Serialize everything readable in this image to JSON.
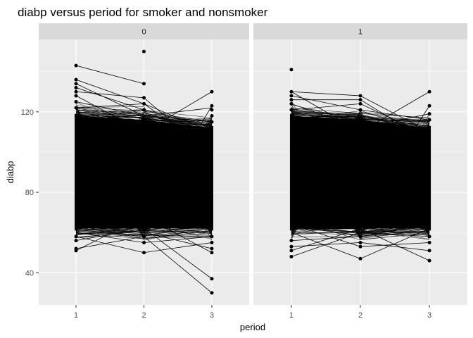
{
  "chart_data": {
    "type": "line",
    "title": "diabp versus period for smoker and nonsmoker",
    "xlabel": "period",
    "ylabel": "diabp",
    "x_ticks": [
      1,
      2,
      3
    ],
    "y_ticks": [
      40,
      80,
      120
    ],
    "xlim": [
      0.45,
      3.55
    ],
    "ylim": [
      24,
      156
    ],
    "grid": true,
    "colors": {
      "panel_background": "#ebebeb",
      "strip_background": "#d9d9d9",
      "gridline": "#ffffff",
      "series": "#000000"
    },
    "density_band": {
      "note": "dense overlapping per-subject lines",
      "period_1_range": [
        62,
        118
      ],
      "period_2_range": [
        62,
        116
      ],
      "period_3_range": [
        62,
        112
      ]
    },
    "facets": [
      {
        "label": "0",
        "outlier_points": [
          {
            "x": 1,
            "y": 143
          },
          {
            "x": 1,
            "y": 136
          },
          {
            "x": 1,
            "y": 134
          },
          {
            "x": 1,
            "y": 132
          },
          {
            "x": 1,
            "y": 130
          },
          {
            "x": 1,
            "y": 128
          },
          {
            "x": 1,
            "y": 125
          },
          {
            "x": 1,
            "y": 122
          },
          {
            "x": 1,
            "y": 58
          },
          {
            "x": 1,
            "y": 56
          },
          {
            "x": 1,
            "y": 52
          },
          {
            "x": 1,
            "y": 51
          },
          {
            "x": 2,
            "y": 150
          },
          {
            "x": 2,
            "y": 134
          },
          {
            "x": 2,
            "y": 127
          },
          {
            "x": 2,
            "y": 124
          },
          {
            "x": 2,
            "y": 121
          },
          {
            "x": 2,
            "y": 58
          },
          {
            "x": 2,
            "y": 55
          },
          {
            "x": 2,
            "y": 50
          },
          {
            "x": 3,
            "y": 130
          },
          {
            "x": 3,
            "y": 123
          },
          {
            "x": 3,
            "y": 121
          },
          {
            "x": 3,
            "y": 118
          },
          {
            "x": 3,
            "y": 115
          },
          {
            "x": 3,
            "y": 58
          },
          {
            "x": 3,
            "y": 55
          },
          {
            "x": 3,
            "y": 52
          },
          {
            "x": 3,
            "y": 50
          },
          {
            "x": 3,
            "y": 37
          },
          {
            "x": 3,
            "y": 30
          }
        ],
        "outlier_lines": [
          [
            143,
            134,
            null
          ],
          [
            136,
            124,
            110
          ],
          [
            134,
            118,
            122
          ],
          [
            132,
            121,
            112
          ],
          [
            130,
            127,
            98
          ],
          [
            128,
            110,
            130
          ],
          [
            125,
            118,
            115
          ],
          [
            122,
            124,
            100
          ],
          [
            null,
            150,
            null
          ],
          [
            58,
            50,
            55
          ],
          [
            56,
            62,
            37
          ],
          [
            52,
            58,
            30
          ],
          [
            51,
            68,
            50
          ],
          [
            60,
            55,
            58
          ],
          [
            62,
            60,
            52
          ],
          [
            70,
            66,
            123
          ]
        ]
      },
      {
        "label": "1",
        "outlier_points": [
          {
            "x": 1,
            "y": 141
          },
          {
            "x": 1,
            "y": 130
          },
          {
            "x": 1,
            "y": 128
          },
          {
            "x": 1,
            "y": 126
          },
          {
            "x": 1,
            "y": 124
          },
          {
            "x": 1,
            "y": 121
          },
          {
            "x": 1,
            "y": 56
          },
          {
            "x": 1,
            "y": 53
          },
          {
            "x": 1,
            "y": 51
          },
          {
            "x": 1,
            "y": 48
          },
          {
            "x": 2,
            "y": 128
          },
          {
            "x": 2,
            "y": 126
          },
          {
            "x": 2,
            "y": 124
          },
          {
            "x": 2,
            "y": 121
          },
          {
            "x": 2,
            "y": 58
          },
          {
            "x": 2,
            "y": 55
          },
          {
            "x": 2,
            "y": 53
          },
          {
            "x": 2,
            "y": 47
          },
          {
            "x": 3,
            "y": 130
          },
          {
            "x": 3,
            "y": 123
          },
          {
            "x": 3,
            "y": 119
          },
          {
            "x": 3,
            "y": 116
          },
          {
            "x": 3,
            "y": 58
          },
          {
            "x": 3,
            "y": 55
          },
          {
            "x": 3,
            "y": 51
          },
          {
            "x": 3,
            "y": 46
          }
        ],
        "outlier_lines": [
          [
            130,
            128,
            110
          ],
          [
            128,
            121,
            116
          ],
          [
            126,
            126,
            105
          ],
          [
            124,
            112,
            119
          ],
          [
            121,
            124,
            108
          ],
          [
            130,
            110,
            130
          ],
          [
            56,
            58,
            62
          ],
          [
            53,
            55,
            51
          ],
          [
            51,
            62,
            46
          ],
          [
            48,
            60,
            58
          ],
          [
            60,
            47,
            62
          ],
          [
            64,
            53,
            55
          ],
          [
            68,
            70,
            123
          ]
        ]
      }
    ]
  }
}
